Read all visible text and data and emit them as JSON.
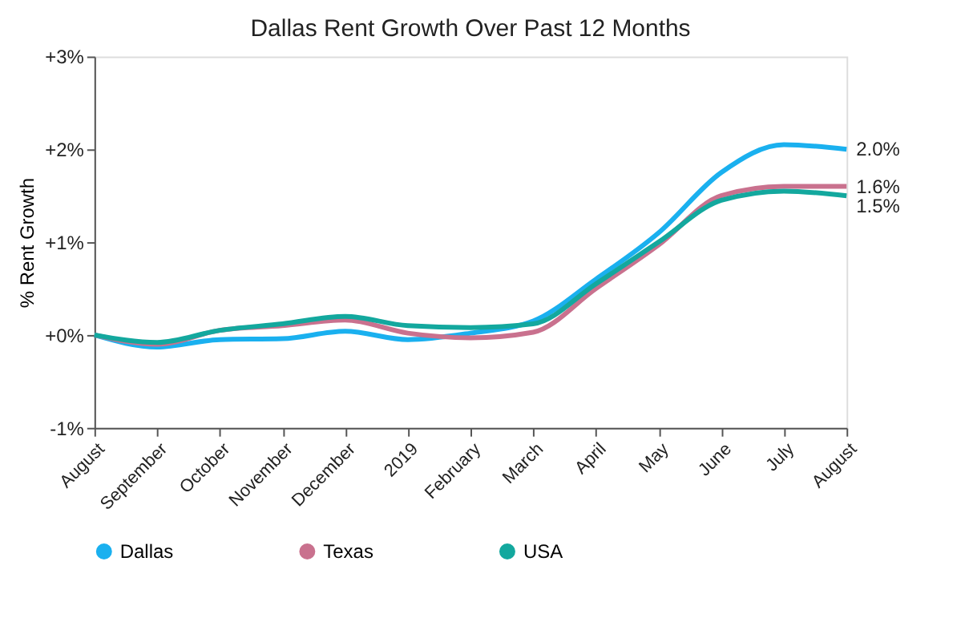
{
  "chart_data": {
    "type": "line",
    "title": "Dallas Rent Growth Over Past 12 Months",
    "ylabel": "% Rent Growth",
    "categories": [
      "August",
      "September",
      "October",
      "November",
      "December",
      "2019",
      "February",
      "March",
      "April",
      "May",
      "June",
      "July",
      "August"
    ],
    "series": [
      {
        "name": "Dallas",
        "color": "#1ab0ef",
        "values": [
          0,
          -0.13,
          -0.05,
          -0.04,
          0.04,
          -0.05,
          0.02,
          0.15,
          0.6,
          1.1,
          1.75,
          2.05,
          2.0
        ],
        "value_labels": [
          null,
          null,
          null,
          null,
          null,
          null,
          null,
          null,
          null,
          null,
          null,
          null,
          "2.0%"
        ]
      },
      {
        "name": "Texas",
        "color": "#c9718e",
        "values": [
          0,
          -0.1,
          0.05,
          0.1,
          0.16,
          0.02,
          -0.03,
          0.03,
          0.5,
          0.97,
          1.5,
          1.6,
          1.6
        ],
        "value_labels": [
          null,
          null,
          null,
          null,
          null,
          null,
          null,
          null,
          null,
          null,
          null,
          null,
          "1.6%"
        ]
      },
      {
        "name": "USA",
        "color": "#13a89e",
        "values": [
          0,
          -0.08,
          0.05,
          0.12,
          0.2,
          0.1,
          0.08,
          0.12,
          0.55,
          1.0,
          1.45,
          1.55,
          1.5
        ],
        "value_labels": [
          null,
          null,
          null,
          null,
          null,
          null,
          null,
          null,
          null,
          null,
          null,
          null,
          "1.5%"
        ]
      }
    ],
    "ylim": [
      -1,
      3
    ],
    "yticks": [
      {
        "value": -1,
        "label": "-1%"
      },
      {
        "value": 0,
        "label": "+0%"
      },
      {
        "value": 1,
        "label": "+1%"
      },
      {
        "value": 2,
        "label": "+2%"
      },
      {
        "value": 3,
        "label": "+3%"
      }
    ],
    "grid": false,
    "legend": "bottom",
    "marker": "none",
    "line_style": "solid"
  }
}
